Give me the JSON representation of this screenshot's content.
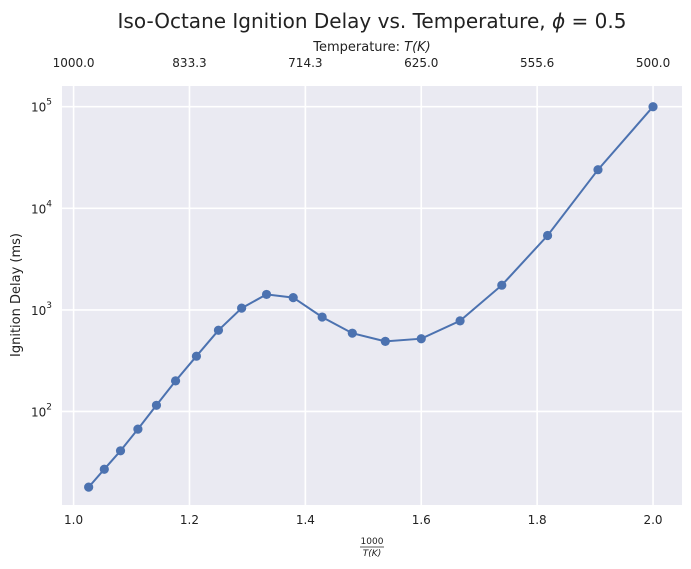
{
  "chart_data": {
    "type": "line",
    "title_main": "Iso-Octane Ignition Delay vs. Temperature, ",
    "title_symbol": "ϕ",
    "title_tail": " = 0.5",
    "xlabel_num": "1000",
    "xlabel_den": "T(K)",
    "ylabel": "Ignition Delay (ms)",
    "top_axis_label_text": "Temperature: ",
    "top_axis_label_var": "T(K)",
    "xlim": [
      0.98,
      2.05
    ],
    "ylim": [
      12,
      160000
    ],
    "y_scale": "log",
    "grid": true,
    "x_ticks": [
      "1.0",
      "1.2",
      "1.4",
      "1.6",
      "1.8",
      "2.0"
    ],
    "x_tick_values": [
      1.0,
      1.2,
      1.4,
      1.6,
      1.8,
      2.0
    ],
    "y_ticks": [
      {
        "base": "10",
        "exp": "2",
        "value": 100
      },
      {
        "base": "10",
        "exp": "3",
        "value": 1000
      },
      {
        "base": "10",
        "exp": "4",
        "value": 10000
      },
      {
        "base": "10",
        "exp": "5",
        "value": 100000
      }
    ],
    "top_ticks": [
      "1000.0",
      "833.3",
      "714.3",
      "625.0",
      "555.6",
      "500.0"
    ],
    "top_tick_positions": [
      1.0,
      1.2,
      1.4,
      1.6,
      1.8,
      2.0
    ],
    "series": [
      {
        "color": "#4c72b0",
        "x": [
          1.026,
          1.053,
          1.081,
          1.111,
          1.143,
          1.176,
          1.212,
          1.25,
          1.29,
          1.333,
          1.379,
          1.429,
          1.481,
          1.538,
          1.6,
          1.667,
          1.739,
          1.818,
          1.905,
          2.0
        ],
        "y": [
          18,
          27,
          41,
          67,
          115,
          200,
          350,
          630,
          1040,
          1420,
          1320,
          850,
          590,
          490,
          520,
          780,
          1750,
          5400,
          24000,
          100000
        ]
      }
    ]
  }
}
